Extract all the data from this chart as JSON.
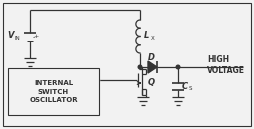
{
  "bg_color": "#f2f2f2",
  "border_color": "#555555",
  "line_color": "#333333",
  "figsize": [
    2.54,
    1.29
  ],
  "dpi": 100,
  "vin_label": "V",
  "vin_sub": "IN",
  "lx_label": "L",
  "lx_sub": "X",
  "d_label": "D",
  "q_label": "Q",
  "cs_label": "C",
  "cs_sub": "S",
  "high_voltage_label": "HIGH\nVOLTAGE",
  "box_label": "INTERNAL\nSWITCH\nOSCILLATOR",
  "plus_label": "+",
  "minus_label": "-"
}
